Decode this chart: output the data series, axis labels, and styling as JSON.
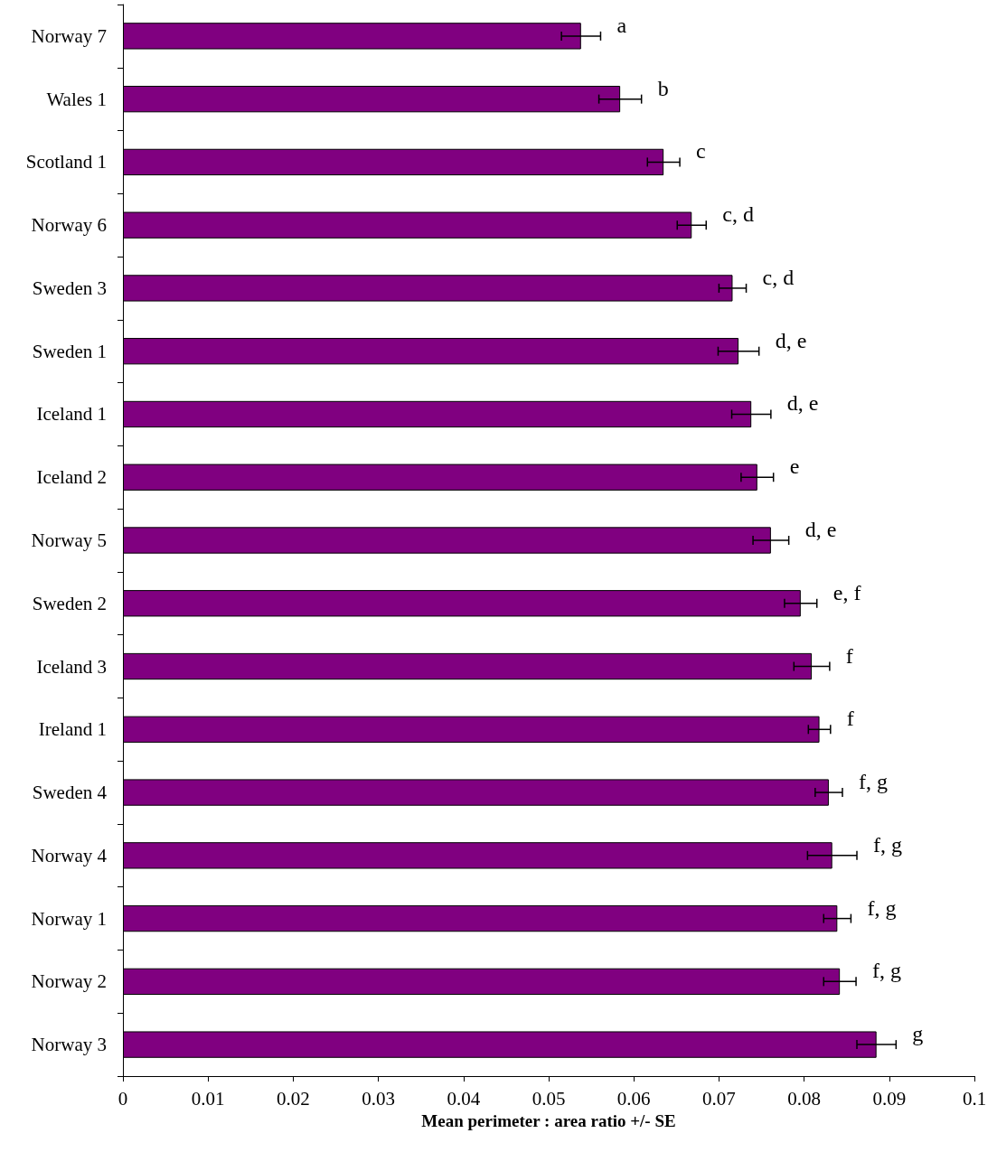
{
  "chart_data": {
    "type": "bar",
    "orientation": "horizontal",
    "xlabel": "Mean perimeter : area ratio +/- SE",
    "categories": [
      "Norway 7",
      "Wales 1",
      "Scotland 1",
      "Norway 6",
      "Sweden 3",
      "Sweden 1",
      "Iceland 1",
      "Iceland 2",
      "Norway 5",
      "Sweden 2",
      "Iceland 3",
      "Ireland 1",
      "Sweden 4",
      "Norway 4",
      "Norway 1",
      "Norway 2",
      "Norway 3"
    ],
    "values": [
      0.0538,
      0.0584,
      0.0635,
      0.0668,
      0.0716,
      0.0723,
      0.0738,
      0.0745,
      0.0761,
      0.0796,
      0.0809,
      0.0818,
      0.0829,
      0.0833,
      0.0839,
      0.0842,
      0.0885
    ],
    "errors": [
      0.0023,
      0.0025,
      0.0019,
      0.0017,
      0.0016,
      0.0024,
      0.0023,
      0.0019,
      0.0021,
      0.0019,
      0.0021,
      0.0013,
      0.0016,
      0.0029,
      0.0016,
      0.0019,
      0.0023
    ],
    "color": "#800080",
    "xlim": [
      0,
      0.1
    ],
    "xticks": [
      0,
      0.01,
      0.02,
      0.03,
      0.04,
      0.05,
      0.06,
      0.07,
      0.08,
      0.09,
      0.1
    ],
    "annotations": [
      {
        "text": "a",
        "x": 0.0538,
        "y": "Norway 7"
      },
      {
        "text": "b",
        "x": 0.0584,
        "y": "Wales 1"
      },
      {
        "text": "c",
        "x": 0.0635,
        "y": "Scotland 1"
      },
      {
        "text": "c, d",
        "x": 0.0668,
        "y": "Norway 6"
      },
      {
        "text": "c, d",
        "x": 0.0716,
        "y": "Sweden 3"
      },
      {
        "text": "d, e",
        "x": 0.0723,
        "y": "Sweden 1"
      },
      {
        "text": "d, e",
        "x": 0.0738,
        "y": "Iceland 1"
      },
      {
        "text": "e",
        "x": 0.0745,
        "y": "Iceland 2"
      },
      {
        "text": "d, e",
        "x": 0.0761,
        "y": "Norway 5"
      },
      {
        "text": "e, f",
        "x": 0.0796,
        "y": "Sweden 2"
      },
      {
        "text": "f",
        "x": 0.0809,
        "y": "Iceland 3"
      },
      {
        "text": "f",
        "x": 0.0818,
        "y": "Ireland 1"
      },
      {
        "text": "f, g",
        "x": 0.0829,
        "y": "Sweden 4"
      },
      {
        "text": "f, g",
        "x": 0.0833,
        "y": "Norway 4"
      },
      {
        "text": "f, g",
        "x": 0.0839,
        "y": "Norway 1"
      },
      {
        "text": "f, g",
        "x": 0.0842,
        "y": "Norway 2"
      },
      {
        "text": "g",
        "x": 0.0885,
        "y": "Norway 3"
      }
    ]
  }
}
